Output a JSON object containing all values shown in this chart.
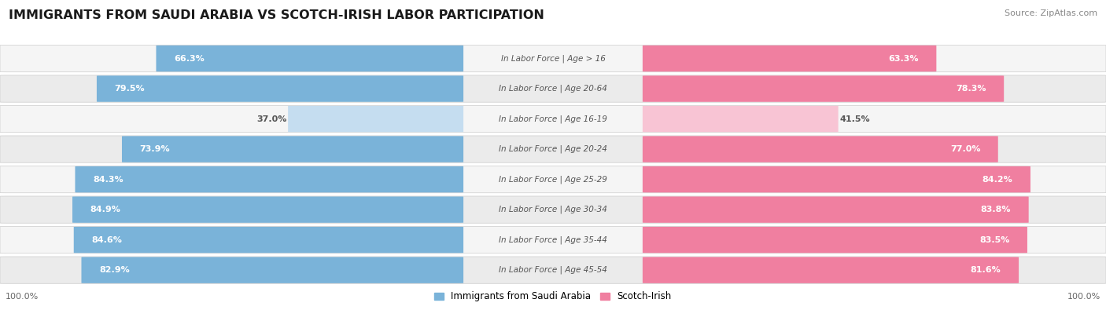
{
  "title": "IMMIGRANTS FROM SAUDI ARABIA VS SCOTCH-IRISH LABOR PARTICIPATION",
  "source": "Source: ZipAtlas.com",
  "categories": [
    "In Labor Force | Age > 16",
    "In Labor Force | Age 20-64",
    "In Labor Force | Age 16-19",
    "In Labor Force | Age 20-24",
    "In Labor Force | Age 25-29",
    "In Labor Force | Age 30-34",
    "In Labor Force | Age 35-44",
    "In Labor Force | Age 45-54"
  ],
  "saudi_values": [
    66.3,
    79.5,
    37.0,
    73.9,
    84.3,
    84.9,
    84.6,
    82.9
  ],
  "scotch_values": [
    63.3,
    78.3,
    41.5,
    77.0,
    84.2,
    83.8,
    83.5,
    81.6
  ],
  "saudi_color": "#7ab3d9",
  "saudi_color_light": "#c5ddf0",
  "scotch_color": "#f07fa0",
  "scotch_color_light": "#f8c4d4",
  "text_white": "#ffffff",
  "text_dark": "#555555",
  "row_bg": "#e8e8e8",
  "row_bg_light": "#f0f0f0",
  "bg_color": "#ffffff",
  "center_bg": "#f5f5f5",
  "legend_saudi": "Immigrants from Saudi Arabia",
  "legend_scotch": "Scotch-Irish",
  "title_fontsize": 11.5,
  "source_fontsize": 8,
  "bar_label_fontsize": 8,
  "category_fontsize": 7.5,
  "legend_fontsize": 8.5,
  "footer_fontsize": 8
}
